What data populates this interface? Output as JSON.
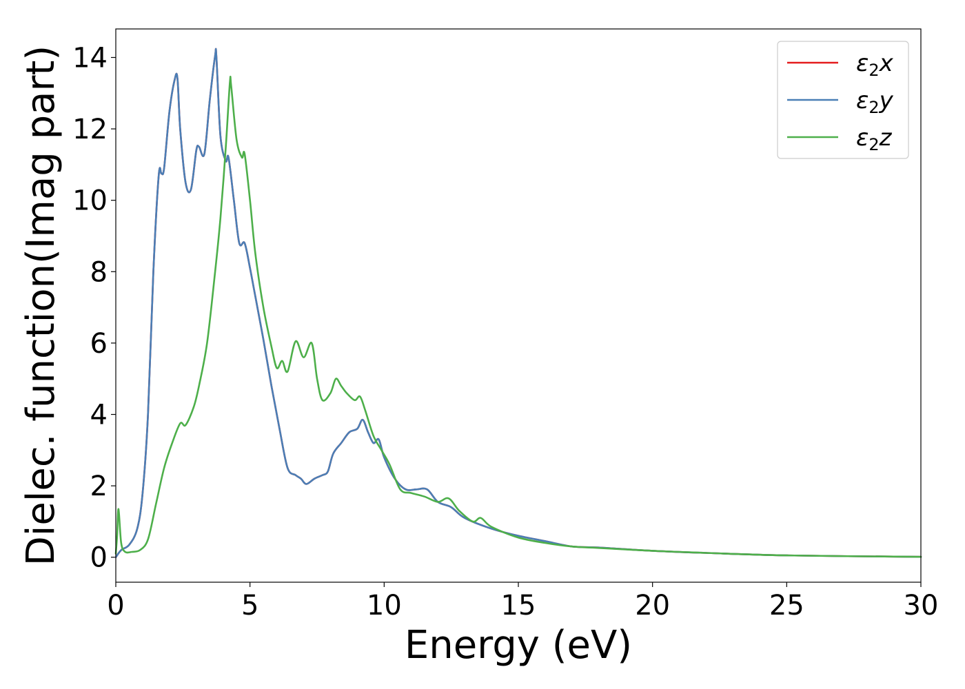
{
  "chart_data": {
    "type": "line",
    "xlabel": "Energy (eV)",
    "ylabel": "Dielec. function(Imag part)",
    "xlim": [
      0,
      30
    ],
    "ylim": [
      -0.7,
      14.8
    ],
    "xticks": [
      0,
      5,
      10,
      15,
      20,
      25,
      30
    ],
    "yticks": [
      0,
      2,
      4,
      6,
      8,
      10,
      12,
      14
    ],
    "grid": false,
    "legend_position": "top-right",
    "series": [
      {
        "name": "ε2x",
        "legend": {
          "base": "ε",
          "sub": "2",
          "suffix": "x"
        },
        "color": "#e41a1c",
        "x": [
          0,
          0.2,
          0.5,
          0.8,
          1.0,
          1.2,
          1.4,
          1.6,
          1.7,
          1.8,
          2.0,
          2.2,
          2.3,
          2.4,
          2.6,
          2.8,
          3.0,
          3.1,
          3.3,
          3.5,
          3.7,
          3.75,
          3.9,
          4.1,
          4.2,
          4.4,
          4.6,
          4.8,
          5.0,
          5.2,
          5.5,
          5.8,
          6.1,
          6.4,
          6.7,
          6.9,
          7.1,
          7.4,
          7.7,
          7.9,
          8.1,
          8.4,
          8.7,
          9.0,
          9.2,
          9.4,
          9.6,
          9.8,
          10.0,
          10.4,
          10.8,
          11.2,
          11.6,
          12.0,
          12.5,
          13.0,
          14.0,
          15.0,
          16.0,
          17.0,
          18.0,
          20.0,
          22.0,
          25.0,
          30.0
        ],
        "values": [
          0.0,
          0.2,
          0.35,
          0.8,
          1.8,
          4.0,
          8.0,
          10.7,
          10.75,
          10.9,
          12.5,
          13.4,
          13.4,
          12.0,
          10.5,
          10.3,
          11.4,
          11.5,
          11.3,
          12.8,
          14.05,
          14.0,
          11.8,
          11.1,
          11.2,
          10.0,
          8.8,
          8.8,
          8.1,
          7.3,
          6.1,
          4.8,
          3.6,
          2.5,
          2.3,
          2.2,
          2.05,
          2.2,
          2.3,
          2.4,
          2.9,
          3.2,
          3.5,
          3.6,
          3.85,
          3.5,
          3.2,
          3.3,
          2.8,
          2.2,
          1.9,
          1.9,
          1.9,
          1.55,
          1.4,
          1.1,
          0.8,
          0.6,
          0.45,
          0.3,
          0.27,
          0.18,
          0.12,
          0.05,
          0.01
        ]
      },
      {
        "name": "ε2y",
        "legend": {
          "base": "ε",
          "sub": "2",
          "suffix": "y"
        },
        "color": "#4a7fb6",
        "x": [
          0,
          0.2,
          0.5,
          0.8,
          1.0,
          1.2,
          1.4,
          1.6,
          1.7,
          1.8,
          2.0,
          2.2,
          2.3,
          2.4,
          2.6,
          2.8,
          3.0,
          3.1,
          3.3,
          3.5,
          3.7,
          3.75,
          3.9,
          4.1,
          4.2,
          4.4,
          4.6,
          4.8,
          5.0,
          5.2,
          5.5,
          5.8,
          6.1,
          6.4,
          6.7,
          6.9,
          7.1,
          7.4,
          7.7,
          7.9,
          8.1,
          8.4,
          8.7,
          9.0,
          9.2,
          9.4,
          9.6,
          9.8,
          10.0,
          10.4,
          10.8,
          11.2,
          11.6,
          12.0,
          12.5,
          13.0,
          14.0,
          15.0,
          16.0,
          17.0,
          18.0,
          20.0,
          22.0,
          25.0,
          30.0
        ],
        "values": [
          0.0,
          0.2,
          0.35,
          0.8,
          1.8,
          4.0,
          8.0,
          10.7,
          10.75,
          10.9,
          12.5,
          13.4,
          13.4,
          12.0,
          10.5,
          10.3,
          11.4,
          11.5,
          11.3,
          12.8,
          14.05,
          14.0,
          11.8,
          11.1,
          11.2,
          10.0,
          8.8,
          8.8,
          8.1,
          7.3,
          6.1,
          4.8,
          3.6,
          2.5,
          2.3,
          2.2,
          2.05,
          2.2,
          2.3,
          2.4,
          2.9,
          3.2,
          3.5,
          3.6,
          3.85,
          3.5,
          3.2,
          3.3,
          2.8,
          2.2,
          1.9,
          1.9,
          1.9,
          1.55,
          1.4,
          1.1,
          0.8,
          0.6,
          0.45,
          0.3,
          0.27,
          0.18,
          0.12,
          0.05,
          0.01
        ]
      },
      {
        "name": "ε2z",
        "legend": {
          "base": "ε",
          "sub": "2",
          "suffix": "z"
        },
        "color": "#4daf4a",
        "x": [
          0,
          0.05,
          0.1,
          0.2,
          0.35,
          0.6,
          0.9,
          1.2,
          1.5,
          1.8,
          2.1,
          2.4,
          2.6,
          2.9,
          3.1,
          3.4,
          3.7,
          3.9,
          4.1,
          4.25,
          4.3,
          4.5,
          4.7,
          4.8,
          5.0,
          5.2,
          5.5,
          5.8,
          6.0,
          6.2,
          6.4,
          6.7,
          7.0,
          7.3,
          7.5,
          7.7,
          8.0,
          8.2,
          8.4,
          8.6,
          8.9,
          9.1,
          9.3,
          9.6,
          9.9,
          10.2,
          10.6,
          11.0,
          11.5,
          12.0,
          12.4,
          12.8,
          13.3,
          13.6,
          14.0,
          15.0,
          16.0,
          17.0,
          18.0,
          20.0,
          22.0,
          25.0,
          30.0
        ],
        "values": [
          0.1,
          0.6,
          1.35,
          0.4,
          0.15,
          0.15,
          0.2,
          0.5,
          1.5,
          2.5,
          3.2,
          3.75,
          3.7,
          4.2,
          4.8,
          6.0,
          8.0,
          9.5,
          11.5,
          13.3,
          13.2,
          11.7,
          11.2,
          11.3,
          10.0,
          8.5,
          7.0,
          5.9,
          5.3,
          5.5,
          5.2,
          6.05,
          5.6,
          6.0,
          5.0,
          4.4,
          4.6,
          5.0,
          4.8,
          4.6,
          4.4,
          4.5,
          4.1,
          3.4,
          3.0,
          2.6,
          1.9,
          1.8,
          1.7,
          1.55,
          1.65,
          1.3,
          1.0,
          1.1,
          0.85,
          0.55,
          0.4,
          0.3,
          0.26,
          0.18,
          0.12,
          0.05,
          0.01
        ]
      }
    ]
  }
}
